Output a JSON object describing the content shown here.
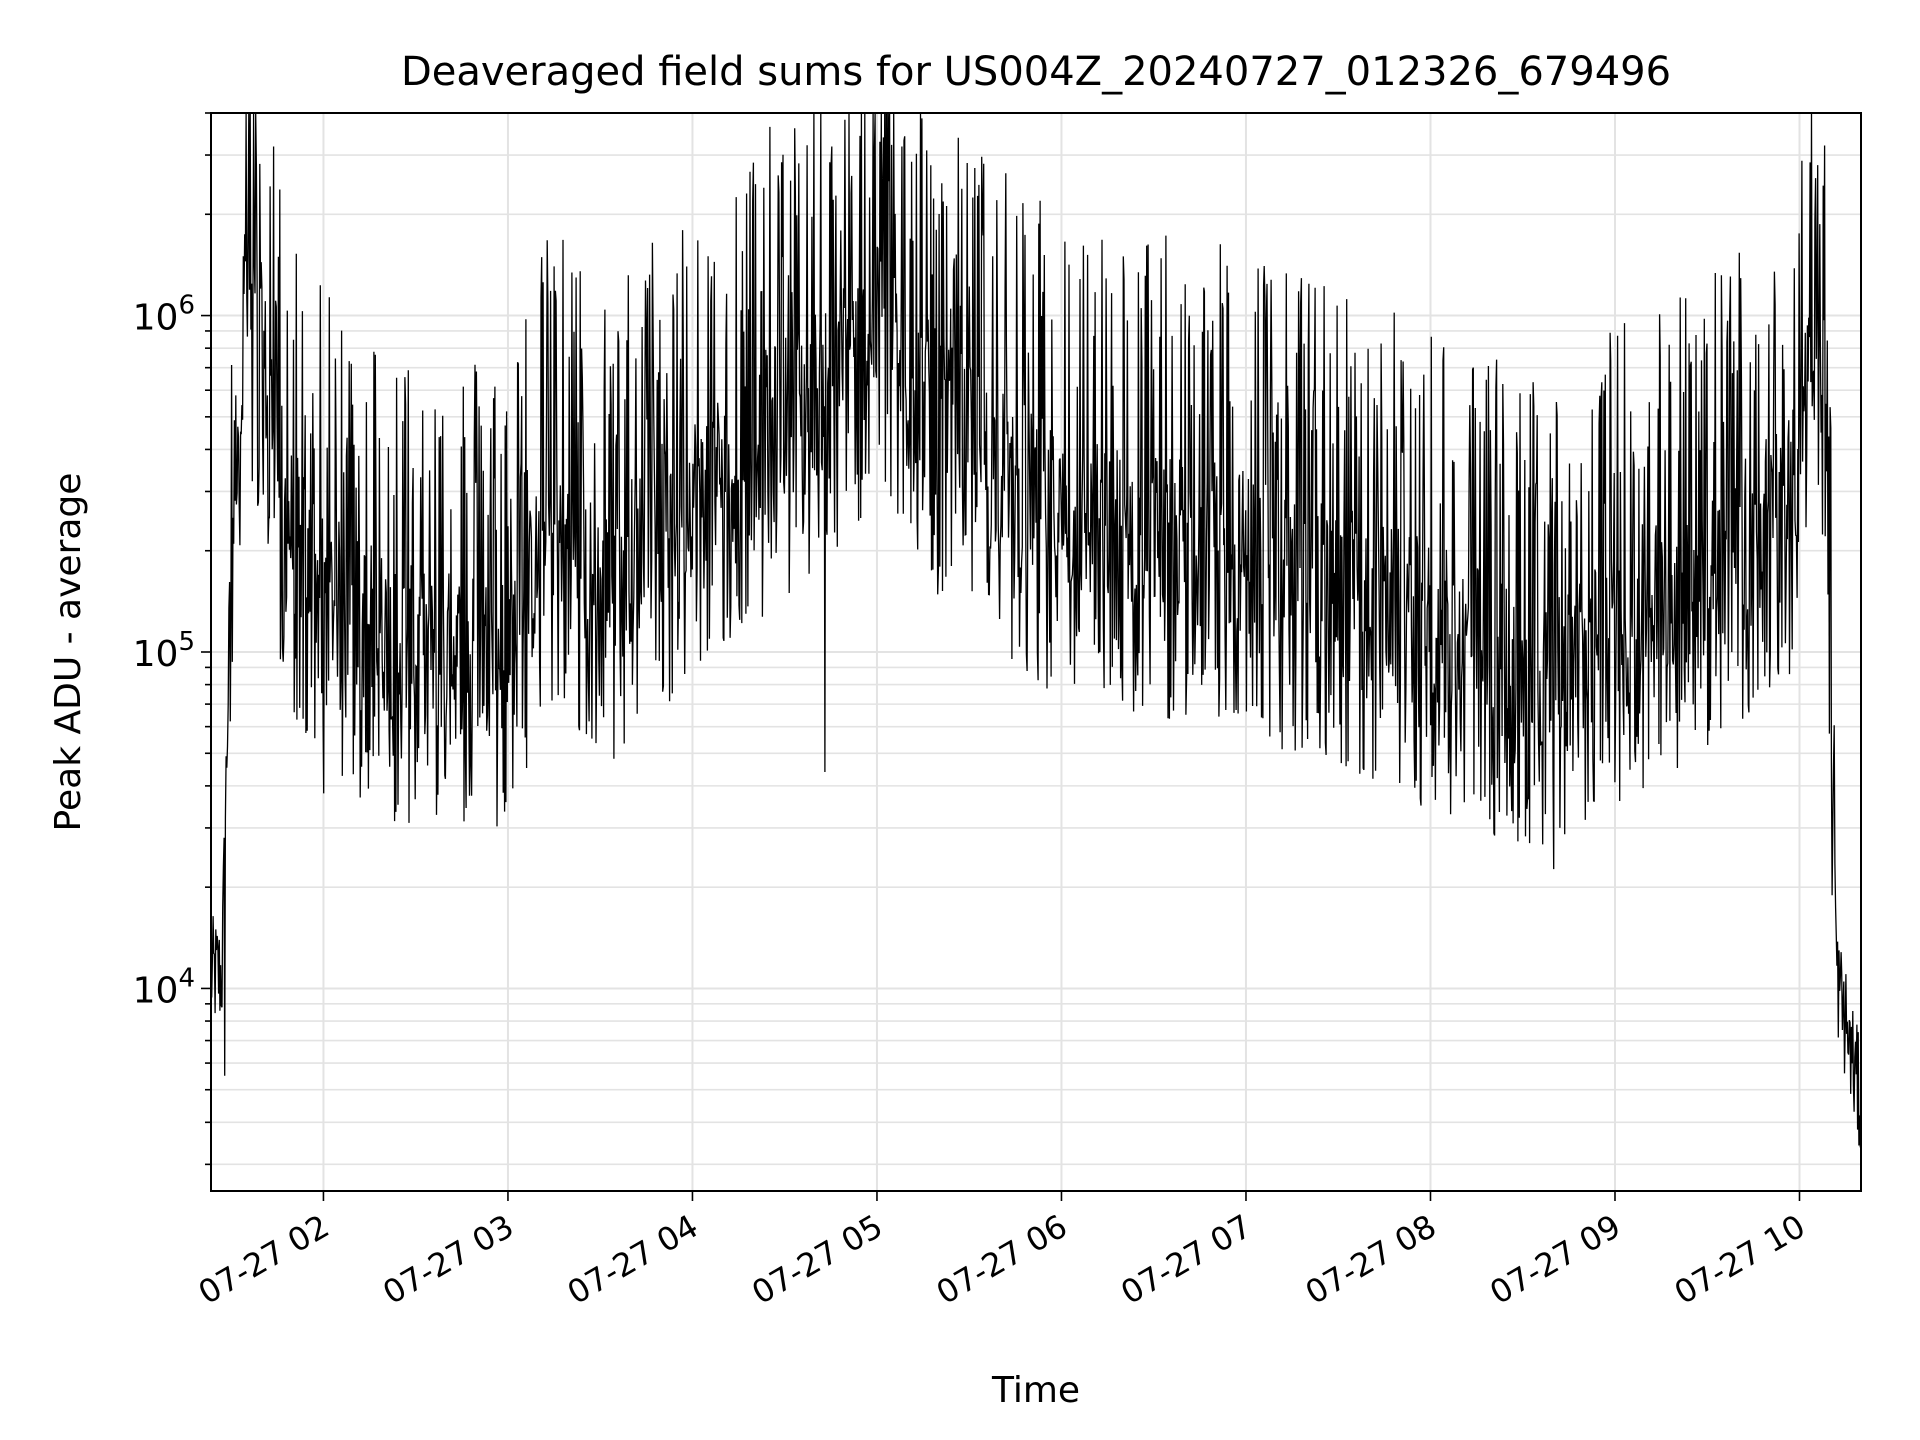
{
  "chart_data": {
    "type": "line",
    "title": "Deaveraged field sums for US004Z_20240727_012326_679496",
    "xlabel": "Time",
    "ylabel": "Peak ADU - average",
    "y_scale": "log",
    "x_range": [
      "2024-07-27 01:23:26",
      "2024-07-27 10:20:00"
    ],
    "ylim": [
      2500,
      4000000
    ],
    "grid": true,
    "grid_minor": true,
    "x_ticks": [
      {
        "time": "2024-07-27 02:00",
        "label": "07-27 02"
      },
      {
        "time": "2024-07-27 03:00",
        "label": "07-27 03"
      },
      {
        "time": "2024-07-27 04:00",
        "label": "07-27 04"
      },
      {
        "time": "2024-07-27 05:00",
        "label": "07-27 05"
      },
      {
        "time": "2024-07-27 06:00",
        "label": "07-27 06"
      },
      {
        "time": "2024-07-27 07:00",
        "label": "07-27 07"
      },
      {
        "time": "2024-07-27 08:00",
        "label": "07-27 08"
      },
      {
        "time": "2024-07-27 09:00",
        "label": "07-27 09"
      },
      {
        "time": "2024-07-27 10:00",
        "label": "07-27 10"
      }
    ],
    "y_ticks": [
      {
        "value": 10000,
        "label_base": "10",
        "label_exp": "4"
      },
      {
        "value": 100000,
        "label_base": "10",
        "label_exp": "5"
      },
      {
        "value": 1000000,
        "label_base": "10",
        "label_exp": "6"
      }
    ],
    "series": [
      {
        "color": "#000000",
        "trend": [
          {
            "time": "2024-07-27 01:23:26",
            "value": 11000
          },
          {
            "time": "2024-07-27 01:27:00",
            "value": 11000
          },
          {
            "time": "2024-07-27 01:30:00",
            "value": 200000
          },
          {
            "time": "2024-07-27 01:34:00",
            "value": 1200000
          },
          {
            "time": "2024-07-27 01:40:00",
            "value": 800000
          },
          {
            "time": "2024-07-27 01:48:00",
            "value": 250000
          },
          {
            "time": "2024-07-27 02:00:00",
            "value": 150000
          },
          {
            "time": "2024-07-27 02:30:00",
            "value": 100000
          },
          {
            "time": "2024-07-27 03:00:00",
            "value": 100000
          },
          {
            "time": "2024-07-27 03:15:00",
            "value": 250000
          },
          {
            "time": "2024-07-27 03:30:00",
            "value": 150000
          },
          {
            "time": "2024-07-27 04:00:00",
            "value": 300000
          },
          {
            "time": "2024-07-27 04:30:00",
            "value": 500000
          },
          {
            "time": "2024-07-27 05:00:00",
            "value": 900000
          },
          {
            "time": "2024-07-27 05:20:00",
            "value": 500000
          },
          {
            "time": "2024-07-27 06:00:00",
            "value": 250000
          },
          {
            "time": "2024-07-27 07:00:00",
            "value": 200000
          },
          {
            "time": "2024-07-27 08:00:00",
            "value": 120000
          },
          {
            "time": "2024-07-27 08:40:00",
            "value": 80000
          },
          {
            "time": "2024-07-27 09:00:00",
            "value": 120000
          },
          {
            "time": "2024-07-27 09:30:00",
            "value": 180000
          },
          {
            "time": "2024-07-27 09:58:00",
            "value": 300000
          },
          {
            "time": "2024-07-27 10:05:00",
            "value": 1200000
          },
          {
            "time": "2024-07-27 10:08:00",
            "value": 600000
          },
          {
            "time": "2024-07-27 10:12:00",
            "value": 11000
          },
          {
            "time": "2024-07-27 10:20:00",
            "value": 4500
          }
        ],
        "peaks": [
          {
            "time": "2024-07-27 01:34:00",
            "value": 1500000
          },
          {
            "time": "2024-07-27 03:15:00",
            "value": 1400000
          },
          {
            "time": "2024-07-27 04:05:00",
            "value": 1500000
          },
          {
            "time": "2024-07-27 05:00:00",
            "value": 1600000
          },
          {
            "time": "2024-07-27 10:06:00",
            "value": 2800000
          }
        ],
        "troughs": [
          {
            "time": "2024-07-27 01:28:00",
            "value": 5500
          },
          {
            "time": "2024-07-27 02:00:00",
            "value": 38000
          },
          {
            "time": "2024-07-27 04:43:00",
            "value": 44000
          },
          {
            "time": "2024-07-27 08:42:00",
            "value": 30000
          },
          {
            "time": "2024-07-27 10:20:00",
            "value": 4200
          }
        ]
      }
    ]
  }
}
